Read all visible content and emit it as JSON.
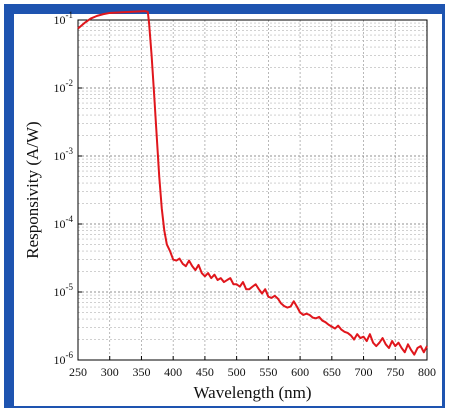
{
  "chart_data": {
    "type": "line",
    "title": "",
    "xlabel": "Wavelength (nm)",
    "ylabel": "Responsivity (A/W)",
    "xlim": [
      250,
      800
    ],
    "ylim": [
      1e-06,
      0.1
    ],
    "y_scale": "log",
    "grid": true,
    "x_ticks": [
      250,
      300,
      350,
      400,
      450,
      500,
      550,
      600,
      650,
      700,
      750,
      800
    ],
    "y_ticks": [
      {
        "value": 0.1,
        "base": "10",
        "exp": "-1"
      },
      {
        "value": 0.01,
        "base": "10",
        "exp": "-2"
      },
      {
        "value": 0.001,
        "base": "10",
        "exp": "-3"
      },
      {
        "value": 0.0001,
        "base": "10",
        "exp": "-4"
      },
      {
        "value": 1e-05,
        "base": "10",
        "exp": "-5"
      },
      {
        "value": 1e-06,
        "base": "10",
        "exp": "-6"
      }
    ],
    "series": [
      {
        "color": "#e0161c",
        "x": [
          250,
          260,
          270,
          280,
          290,
          300,
          320,
          340,
          355,
          360,
          362,
          366,
          370,
          374,
          378,
          382,
          386,
          390,
          395,
          400,
          405,
          410,
          415,
          420,
          425,
          430,
          435,
          440,
          445,
          450,
          455,
          460,
          465,
          470,
          475,
          480,
          485,
          490,
          495,
          500,
          505,
          510,
          515,
          520,
          525,
          530,
          535,
          540,
          545,
          550,
          555,
          560,
          565,
          570,
          575,
          580,
          585,
          590,
          595,
          600,
          605,
          610,
          615,
          620,
          625,
          630,
          635,
          640,
          645,
          650,
          655,
          660,
          665,
          670,
          675,
          680,
          685,
          690,
          695,
          700,
          705,
          710,
          715,
          720,
          725,
          730,
          735,
          740,
          745,
          750,
          755,
          760,
          765,
          770,
          775,
          780,
          785,
          790,
          795,
          800
        ],
        "y": [
          0.075,
          0.09,
          0.105,
          0.115,
          0.122,
          0.127,
          0.13,
          0.133,
          0.135,
          0.132,
          0.09,
          0.03,
          0.008,
          0.002,
          0.0005,
          0.00017,
          8e-05,
          5e-05,
          4e-05,
          3e-05,
          2.9e-05,
          3.1e-05,
          2.6e-05,
          2.4e-05,
          2.9e-05,
          2.4e-05,
          2.1e-05,
          2.5e-05,
          1.9e-05,
          1.7e-05,
          1.9e-05,
          1.6e-05,
          1.8e-05,
          1.5e-05,
          1.6e-05,
          1.4e-05,
          1.5e-05,
          1.6e-05,
          1.3e-05,
          1.3e-05,
          1.2e-05,
          1.4e-05,
          1.1e-05,
          1.1e-05,
          1.2e-05,
          1.3e-05,
          1.1e-05,
          9.5e-06,
          1.1e-05,
          8.5e-06,
          8.2e-06,
          8.8e-06,
          8e-06,
          6.8e-06,
          6.2e-06,
          5.9e-06,
          6.1e-06,
          7.3e-06,
          6.1e-06,
          5e-06,
          4.6e-06,
          4.8e-06,
          4.6e-06,
          4.2e-06,
          4.1e-06,
          4.3e-06,
          3.8e-06,
          3.6e-06,
          3.3e-06,
          3.1e-06,
          2.9e-06,
          3.2e-06,
          2.8e-06,
          2.6e-06,
          2.5e-06,
          2.3e-06,
          2e-06,
          2.4e-06,
          2.1e-06,
          2.2e-06,
          1.9e-06,
          2.4e-06,
          1.8e-06,
          1.6e-06,
          1.8e-06,
          2.1e-06,
          1.7e-06,
          1.5e-06,
          1.9e-06,
          1.6e-06,
          1.8e-06,
          1.5e-06,
          1.3e-06,
          1.7e-06,
          1.4e-06,
          1.2e-06,
          1.5e-06,
          1.6e-06,
          1.3e-06,
          1.6e-06
        ]
      }
    ]
  }
}
